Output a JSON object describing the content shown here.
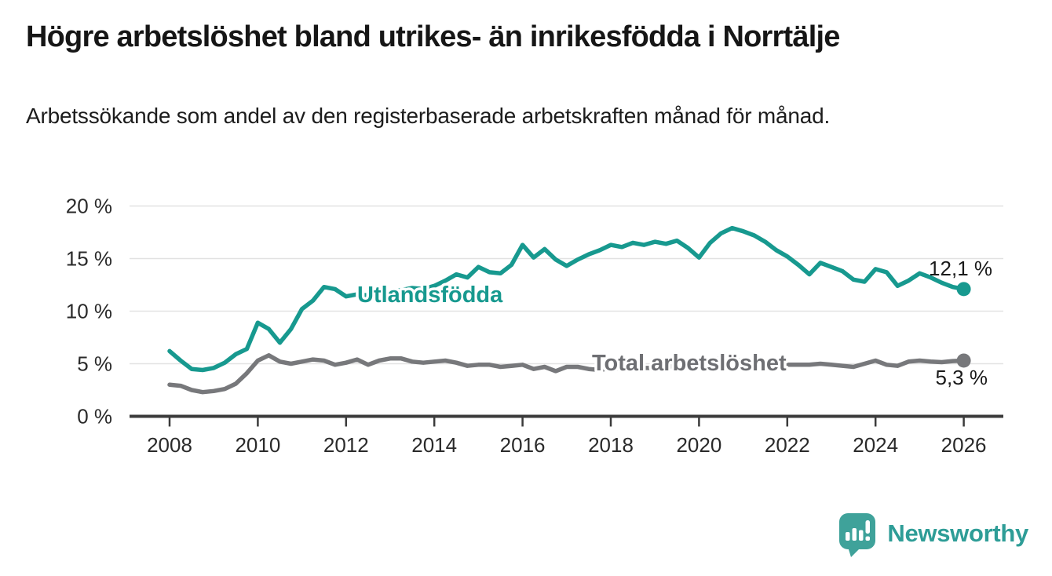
{
  "header": {
    "title": "Högre arbetslöshet bland utrikes- än inrikesfödda i Norrtälje",
    "subtitle": "Arbetssökande som andel av den registerbaserade arbetskraften månad för månad."
  },
  "chart_data": {
    "type": "line",
    "title": "Högre arbetslöshet bland utrikes- än inrikesfödda i Norrtälje",
    "subtitle": "Arbetssökande som andel av den registerbaserade arbetskraften månad för månad.",
    "unit": "%",
    "ylim": [
      0,
      20
    ],
    "xlim": [
      2008,
      2026
    ],
    "grid": "horizontal",
    "x_ticks": [
      2008,
      2010,
      2012,
      2014,
      2016,
      2018,
      2020,
      2022,
      2024,
      2026
    ],
    "y_ticks": [
      {
        "value": 20,
        "label": "20 %"
      },
      {
        "value": 15,
        "label": "15 %"
      },
      {
        "value": 10,
        "label": "10 %"
      },
      {
        "value": 5,
        "label": "5 %"
      },
      {
        "value": 0,
        "label": "0 %"
      }
    ],
    "x": [
      2008,
      2008.25,
      2008.5,
      2008.75,
      2009,
      2009.25,
      2009.5,
      2009.75,
      2010,
      2010.25,
      2010.5,
      2010.75,
      2011,
      2011.25,
      2011.5,
      2011.75,
      2012,
      2012.25,
      2012.5,
      2012.75,
      2013,
      2013.25,
      2013.5,
      2013.75,
      2014,
      2014.25,
      2014.5,
      2014.75,
      2015,
      2015.25,
      2015.5,
      2015.75,
      2016,
      2016.25,
      2016.5,
      2016.75,
      2017,
      2017.25,
      2017.5,
      2017.75,
      2018,
      2018.25,
      2018.5,
      2018.75,
      2019,
      2019.25,
      2019.5,
      2019.75,
      2020,
      2020.25,
      2020.5,
      2020.75,
      2021,
      2021.25,
      2021.5,
      2021.75,
      2022,
      2022.25,
      2022.5,
      2022.75,
      2023,
      2023.25,
      2023.5,
      2023.75,
      2024,
      2024.25,
      2024.5,
      2024.75,
      2025,
      2025.25,
      2025.5,
      2025.75,
      2026
    ],
    "series": [
      {
        "name": "Utlandsfödda",
        "color": "#17998F",
        "end_label": "12,1 %",
        "end_value": 12.1,
        "values": [
          6.2,
          5.3,
          4.5,
          4.4,
          4.6,
          5.1,
          5.9,
          6.4,
          8.9,
          8.3,
          7.0,
          8.3,
          10.2,
          11.0,
          12.3,
          12.1,
          11.4,
          11.6,
          11.5,
          11.3,
          11.8,
          12.0,
          12.2,
          12.1,
          12.4,
          12.9,
          13.5,
          13.2,
          14.2,
          13.7,
          13.6,
          14.4,
          16.3,
          15.1,
          15.9,
          14.9,
          14.3,
          14.9,
          15.4,
          15.8,
          16.3,
          16.1,
          16.5,
          16.3,
          16.6,
          16.4,
          16.7,
          16.0,
          15.1,
          16.5,
          17.4,
          17.9,
          17.6,
          17.2,
          16.6,
          15.8,
          15.2,
          14.4,
          13.5,
          14.6,
          14.2,
          13.8,
          13.0,
          12.8,
          14.0,
          13.7,
          12.4,
          12.9,
          13.6,
          13.2,
          12.7,
          12.3,
          12.1
        ]
      },
      {
        "name": "Total arbetslöshet",
        "color": "#77787B",
        "label_color": "#6E6F73",
        "end_label": "5,3 %",
        "end_value": 5.3,
        "values": [
          3.0,
          2.9,
          2.5,
          2.3,
          2.4,
          2.6,
          3.1,
          4.1,
          5.3,
          5.8,
          5.2,
          5.0,
          5.2,
          5.4,
          5.3,
          4.9,
          5.1,
          5.4,
          4.9,
          5.3,
          5.5,
          5.5,
          5.2,
          5.1,
          5.2,
          5.3,
          5.1,
          4.8,
          4.9,
          4.9,
          4.7,
          4.8,
          4.9,
          4.5,
          4.7,
          4.3,
          4.7,
          4.7,
          4.5,
          4.4,
          4.6,
          4.5,
          4.5,
          4.6,
          4.6,
          4.7,
          4.8,
          4.9,
          5.0,
          5.3,
          5.5,
          5.4,
          5.3,
          5.1,
          5.0,
          4.9,
          4.9,
          4.9,
          4.9,
          5.0,
          4.9,
          4.8,
          4.7,
          5.0,
          5.3,
          4.9,
          4.8,
          5.2,
          5.3,
          5.2,
          5.15,
          5.25,
          5.3
        ]
      }
    ],
    "colors": {
      "grid": "#E2E2E2",
      "axis": "#3B3B3B",
      "value_label": "#1A1A1A"
    }
  },
  "footer": {
    "brand": "Newsworthy",
    "brand_color": "#2E9D97",
    "logo_mark_color": "#3FA29A"
  }
}
